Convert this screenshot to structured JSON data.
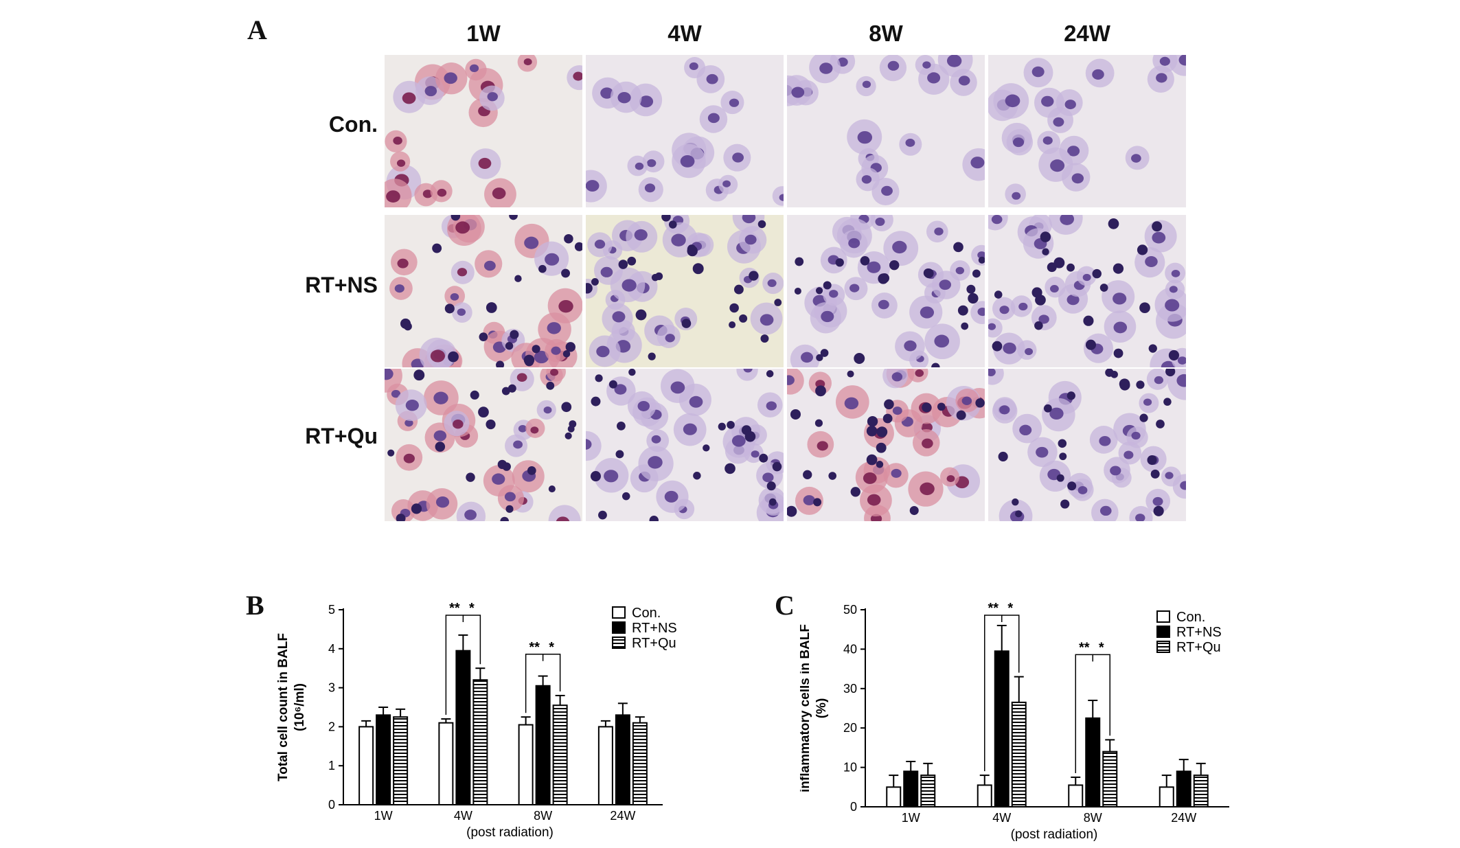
{
  "panel_a": {
    "letter": "A",
    "columns": [
      "1W",
      "4W",
      "8W",
      "24W"
    ],
    "rows": [
      "Con.",
      "RT+NS",
      "RT+Qu"
    ]
  },
  "panel_b_letter": "B",
  "panel_c_letter": "C",
  "colors": {
    "con_fill": "#ffffff",
    "rtns_fill": "#000000",
    "rtqu_fill": "hatched",
    "micro_bg": "#ece7ec",
    "nucleus_purple": "#5a3f8f",
    "cytoplasm_pink": "#d98fa0",
    "cytoplasm_lilac": "#c7b5dc"
  },
  "chart_data": [
    {
      "type": "bar",
      "panel": "B",
      "categories": [
        "1W",
        "4W",
        "8W",
        "24W"
      ],
      "xlabel": "(post radiation)",
      "ylabel": "Total cell count in BALF",
      "ylabel_unit": "(10⁶/ml)",
      "ylim": [
        0,
        5
      ],
      "yticks": [
        "0",
        "1",
        "2",
        "3",
        "4",
        "5"
      ],
      "legend_position": "top-right",
      "series": [
        {
          "name": "Con.",
          "values": [
            2.0,
            2.1,
            2.05,
            2.0
          ],
          "errors": [
            0.15,
            0.1,
            0.2,
            0.15
          ]
        },
        {
          "name": "RT+NS",
          "values": [
            2.3,
            3.95,
            3.05,
            2.3
          ],
          "errors": [
            0.2,
            0.4,
            0.25,
            0.3
          ]
        },
        {
          "name": "RT+Qu",
          "values": [
            2.25,
            3.2,
            2.55,
            2.1
          ],
          "errors": [
            0.2,
            0.3,
            0.25,
            0.15
          ]
        }
      ],
      "significance": [
        {
          "category": "4W",
          "labels": [
            "**",
            "*"
          ]
        },
        {
          "category": "8W",
          "labels": [
            "**",
            "*"
          ]
        }
      ]
    },
    {
      "type": "bar",
      "panel": "C",
      "categories": [
        "1W",
        "4W",
        "8W",
        "24W"
      ],
      "xlabel": "(post radiation)",
      "ylabel": "inflammatory cells in BALF",
      "ylabel_unit": "(%)",
      "ylim": [
        0,
        50
      ],
      "yticks": [
        "0",
        "10",
        "20",
        "30",
        "40",
        "50"
      ],
      "legend_position": "top-right",
      "series": [
        {
          "name": "Con.",
          "values": [
            5,
            5.5,
            5.5,
            5
          ],
          "errors": [
            3,
            2.5,
            2,
            3
          ]
        },
        {
          "name": "RT+NS",
          "values": [
            9,
            39.5,
            22.5,
            9
          ],
          "errors": [
            2.5,
            6.5,
            4.5,
            3
          ]
        },
        {
          "name": "RT+Qu",
          "values": [
            8,
            26.5,
            14,
            8
          ],
          "errors": [
            3,
            6.5,
            3,
            3
          ]
        }
      ],
      "significance": [
        {
          "category": "4W",
          "labels": [
            "**",
            "*"
          ]
        },
        {
          "category": "8W",
          "labels": [
            "**",
            "*"
          ]
        }
      ]
    }
  ]
}
